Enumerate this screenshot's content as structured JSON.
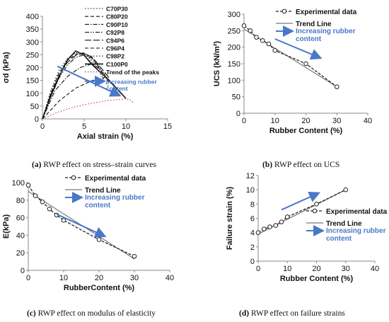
{
  "captions": {
    "a": {
      "tag": "(a)",
      "text": " RWP effect on stress–strain curves"
    },
    "b": {
      "tag": "(b)",
      "text": " RWP effect on UCS"
    },
    "c": {
      "tag": "(c)",
      "text": " RWP effect on modulus of elasticity"
    },
    "d": {
      "tag": "(d)",
      "text": " RWP effect on failure strains"
    }
  },
  "colors": {
    "axis": "#8a8a8a",
    "text": "#111111",
    "arrow": "#4a78c8",
    "arrow_text": "#4a78c8",
    "trend": "#777777",
    "red_dotted": "#d23232"
  },
  "chart_data": [
    {
      "id": "a",
      "type": "line",
      "xlabel": "Axial strain (%)",
      "ylabel": "σd (kPa)",
      "xlim": [
        0,
        15
      ],
      "ylim": [
        0,
        400
      ],
      "xticks": [
        0,
        5,
        10,
        15
      ],
      "yticks": [
        0,
        50,
        100,
        150,
        200,
        250,
        300,
        350,
        400
      ],
      "legend_position": "top-right",
      "series": [
        {
          "name": "C70P30",
          "dash": "dot",
          "x": [
            0,
            2,
            4,
            6,
            8,
            10,
            10.5,
            11
          ],
          "y": [
            0,
            28,
            48,
            62,
            72,
            78,
            75,
            60
          ]
        },
        {
          "name": "C80P20",
          "dash": "dash",
          "x": [
            0,
            2,
            4,
            6,
            7.5,
            8
          ],
          "y": [
            0,
            70,
            120,
            150,
            162,
            150
          ]
        },
        {
          "name": "C90P10",
          "dash": "dashdot",
          "x": [
            0,
            1.5,
            3,
            4.5,
            6,
            7
          ],
          "y": [
            0,
            110,
            165,
            200,
            215,
            190
          ]
        },
        {
          "name": "C92P8",
          "dash": "dashdotdot",
          "x": [
            0,
            1,
            2,
            3,
            4,
            5,
            6,
            8
          ],
          "y": [
            0,
            85,
            160,
            210,
            240,
            250,
            235,
            150
          ]
        },
        {
          "name": "C94P6",
          "dash": "longdash",
          "x": [
            0,
            1,
            2,
            3,
            4,
            5,
            6,
            8
          ],
          "y": [
            0,
            95,
            170,
            220,
            248,
            255,
            240,
            160
          ]
        },
        {
          "name": "C96P4",
          "dash": "dash",
          "x": [
            0,
            1,
            2,
            3,
            4,
            5,
            6,
            8
          ],
          "y": [
            0,
            100,
            180,
            228,
            252,
            258,
            235,
            140
          ]
        },
        {
          "name": "C98P2",
          "dash": "dot",
          "x": [
            0,
            1,
            2,
            3,
            4,
            5,
            6,
            8
          ],
          "y": [
            0,
            110,
            190,
            235,
            258,
            255,
            225,
            120
          ]
        },
        {
          "name": "C100P0",
          "dash": "solid",
          "x": [
            0,
            1,
            2,
            3,
            4,
            5,
            6,
            8,
            10
          ],
          "y": [
            0,
            90,
            165,
            230,
            265,
            248,
            210,
            150,
            80
          ]
        },
        {
          "name": "Trend of the peaks",
          "dash": "dot",
          "x": [
            4,
            4.5,
            5,
            6,
            7.5,
            10
          ],
          "y": [
            265,
            258,
            250,
            215,
            162,
            78
          ]
        }
      ],
      "annotation": {
        "text": "Increasing rubber content",
        "arrow_from": [
          1.8,
          205
        ],
        "arrow_to": [
          9,
          95
        ]
      }
    },
    {
      "id": "b",
      "type": "scatter",
      "xlabel": "Rubber Content (%)",
      "ylabel": "UCS (kN/m²)",
      "xlim": [
        0,
        40
      ],
      "ylim": [
        0,
        300
      ],
      "xticks": [
        0,
        10,
        20,
        30,
        40
      ],
      "yticks": [
        0,
        50,
        100,
        150,
        200,
        250,
        300
      ],
      "legend_position": "top-right",
      "series": [
        {
          "name": "Experimental data",
          "x": [
            0,
            2,
            4,
            6,
            8,
            10,
            20,
            30
          ],
          "y": [
            265,
            250,
            230,
            220,
            210,
            190,
            150,
            80
          ]
        },
        {
          "name": "Trend Line",
          "x": [
            0,
            30
          ],
          "y": [
            255,
            80
          ]
        }
      ],
      "annotation": {
        "text": "Increasing rubber content",
        "arrow_from": [
          10,
          225
        ],
        "arrow_to": [
          24,
          170
        ]
      }
    },
    {
      "id": "c",
      "type": "scatter",
      "xlabel": "RubberContent (%)",
      "ylabel": "E(kPa)",
      "xlim": [
        0,
        40
      ],
      "ylim": [
        0,
        100
      ],
      "xticks": [
        0,
        10,
        20,
        30,
        40
      ],
      "yticks": [
        0,
        20,
        40,
        60,
        80,
        100
      ],
      "legend_position": "top-right",
      "series": [
        {
          "name": "Experimental data",
          "x": [
            0,
            2,
            4,
            6,
            8,
            10,
            20,
            30
          ],
          "y": [
            97,
            85,
            78,
            70,
            63,
            57,
            35,
            16
          ]
        },
        {
          "name": "Trend Line",
          "x": [
            0,
            30
          ],
          "y": [
            90,
            13
          ]
        }
      ],
      "annotation": {
        "text": "Increasing rubber content",
        "arrow_from": [
          8,
          64
        ],
        "arrow_to": [
          21,
          40
        ]
      }
    },
    {
      "id": "d",
      "type": "scatter",
      "xlabel": "Rubber Content (%)",
      "ylabel": "Failure strain (%)",
      "xlim": [
        0,
        40
      ],
      "ylim": [
        0,
        12
      ],
      "xticks": [
        0,
        10,
        20,
        30,
        40
      ],
      "yticks": [
        0,
        2,
        4,
        6,
        8,
        10,
        12
      ],
      "legend_position": "right",
      "series": [
        {
          "name": "Experimental data",
          "x": [
            0,
            2,
            4,
            6,
            8,
            10,
            20,
            30
          ],
          "y": [
            4,
            4.5,
            4.8,
            5,
            5.5,
            6.2,
            8,
            10
          ]
        },
        {
          "name": "Trend Line",
          "x": [
            0,
            30
          ],
          "y": [
            3.8,
            10
          ]
        }
      ],
      "annotation": {
        "text": "Increasing rubber content",
        "arrow_from": [
          8,
          7.2
        ],
        "arrow_to": [
          20,
          9.4
        ]
      }
    }
  ]
}
